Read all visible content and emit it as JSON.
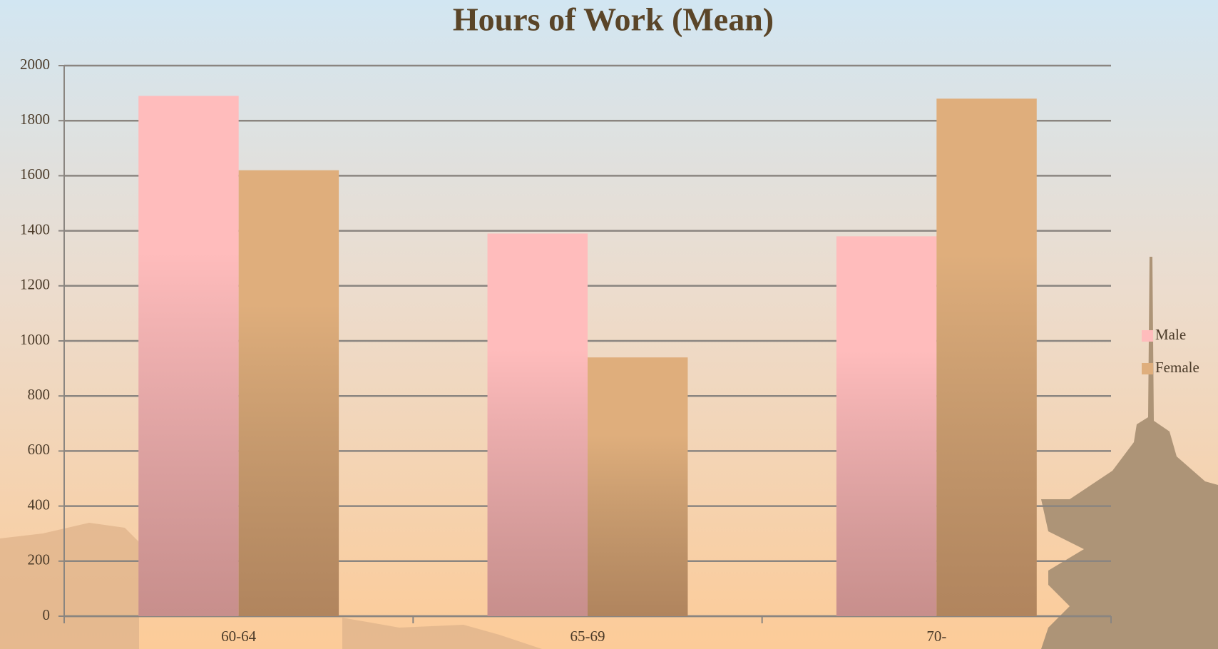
{
  "chart_data": {
    "type": "bar",
    "title": "Hours of Work (Mean)",
    "categories": [
      "60-64",
      "65-69",
      "70-"
    ],
    "series": [
      {
        "name": "Male",
        "color": "#ffbcbc",
        "values": [
          1890,
          1390,
          1380
        ]
      },
      {
        "name": "Female",
        "color": "#dfae7c",
        "values": [
          1620,
          940,
          1880
        ]
      }
    ],
    "ylim": [
      0,
      2000
    ],
    "yticks": [
      0,
      200,
      400,
      600,
      800,
      1000,
      1200,
      1400,
      1600,
      1800,
      2000
    ],
    "grid": true,
    "legend": "right"
  }
}
